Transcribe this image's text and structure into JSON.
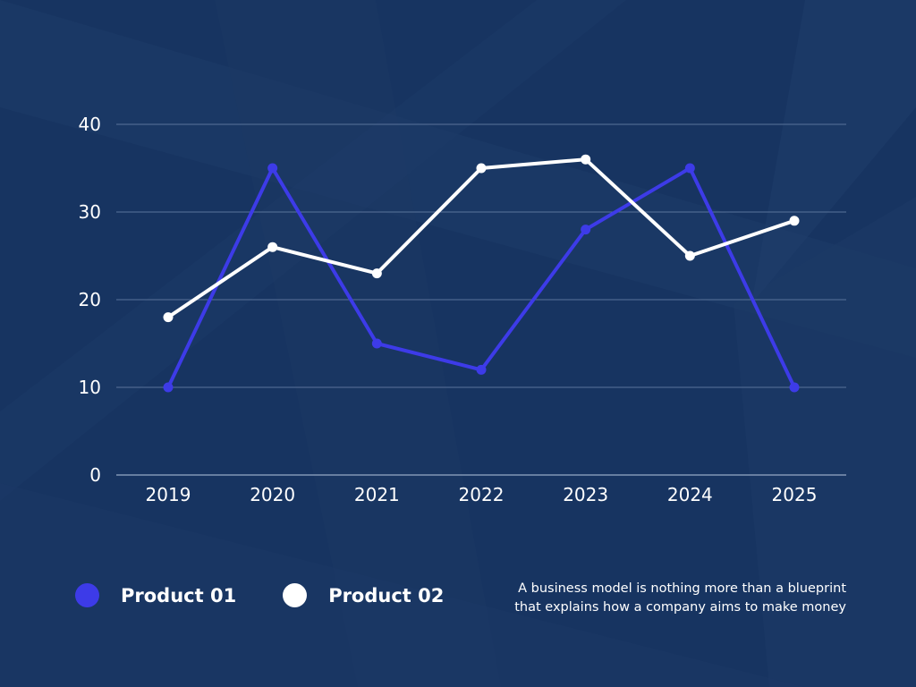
{
  "chart_data": {
    "type": "line",
    "title": "",
    "xlabel": "",
    "ylabel": "",
    "categories": [
      "2019",
      "2020",
      "2021",
      "2022",
      "2023",
      "2024",
      "2025"
    ],
    "ylim": [
      0,
      40
    ],
    "yticks": [
      "0",
      "10",
      "20",
      "30",
      "40"
    ],
    "grid": true,
    "legend_position": "bottom-left",
    "series": [
      {
        "name": "Product 01",
        "color": "#3d3be8",
        "values": [
          10,
          35,
          15,
          12,
          28,
          35,
          10
        ]
      },
      {
        "name": "Product 02",
        "color": "#ffffff",
        "values": [
          18,
          26,
          23,
          35,
          36,
          25,
          29
        ]
      }
    ]
  },
  "note": {
    "line1": "A business model is nothing more than a blueprint",
    "line2": "that explains how a company aims to make money"
  },
  "colors": {
    "background": "#183460",
    "gridline": "#5a739a"
  }
}
